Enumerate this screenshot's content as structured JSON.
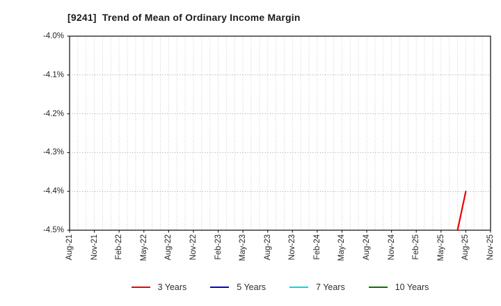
{
  "title": "[9241]  Trend of Mean of Ordinary Income Margin",
  "chart_data": {
    "type": "line",
    "title": "[9241]  Trend of Mean of Ordinary Income Margin",
    "xlabel": "",
    "ylabel": "",
    "ylim": [
      -4.5,
      -4.0
    ],
    "y_ticks": [
      {
        "label": "-4.0%",
        "value": -4.0
      },
      {
        "label": "-4.1%",
        "value": -4.1
      },
      {
        "label": "-4.2%",
        "value": -4.2
      },
      {
        "label": "-4.3%",
        "value": -4.3
      },
      {
        "label": "-4.4%",
        "value": -4.4
      },
      {
        "label": "-4.5%",
        "value": -4.5
      }
    ],
    "x_ticks": [
      "Aug-21",
      "Nov-21",
      "Feb-22",
      "May-22",
      "Aug-22",
      "Nov-22",
      "Feb-23",
      "May-23",
      "Aug-23",
      "Nov-23",
      "Feb-24",
      "May-24",
      "Aug-24",
      "Nov-24",
      "Feb-25",
      "May-25",
      "Aug-25",
      "Nov-25"
    ],
    "months_per_tick": 3,
    "x_total_months": 51,
    "grid": {
      "vertical": "dotted monthly",
      "horizontal": "dotted at each 0.1%"
    },
    "legend_position": "bottom-center",
    "series": [
      {
        "name": "3 Years",
        "color": "#ee0000",
        "points": [
          {
            "x": "Jul-25",
            "month_index": 47,
            "y": -4.5
          },
          {
            "x": "Aug-25",
            "month_index": 48,
            "y": -4.4
          }
        ]
      },
      {
        "name": "5 Years",
        "color": "#0000dd",
        "points": []
      },
      {
        "name": "7 Years",
        "color": "#00dde0",
        "points": []
      },
      {
        "name": "10 Years",
        "color": "#007700",
        "points": []
      }
    ],
    "colors": {
      "plot_border": "#2b2b2b",
      "grid_vertical": "#c3c3c3",
      "grid_horizontal": "#989898",
      "tick_text": "#262626",
      "title_text": "#1b1b1b",
      "background": "#ffffff"
    }
  }
}
